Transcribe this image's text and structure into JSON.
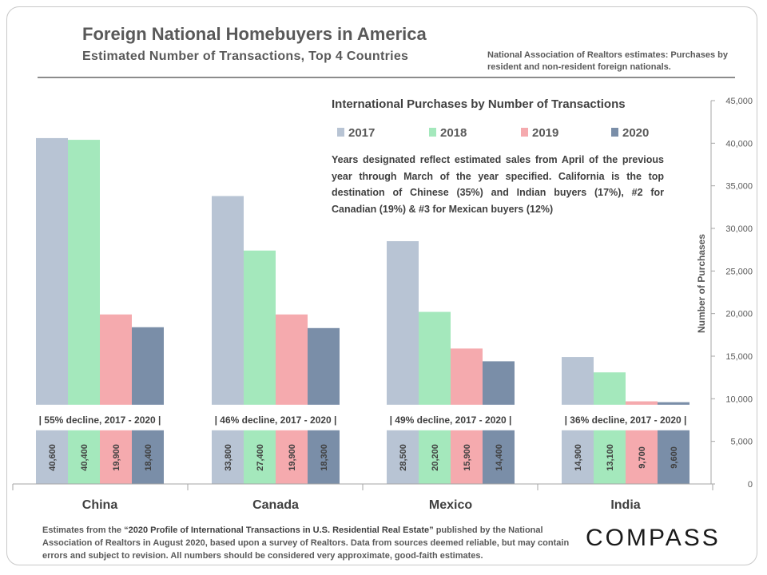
{
  "header": {
    "title": "Foreign National Homebuyers in America",
    "subtitle": "Estimated Number of Transactions, Top 4 Countries",
    "source_note": "National Association of Realtors estimates: Purchases by resident and non-resident foreign nationals."
  },
  "annotation": {
    "note": "Years designated reflect estimated sales from April of the previous year through March of the year specified. California is the top destination of Chinese (35%) and Indian buyers (17%), #2 for Canadian (19%) & #3 for Mexican buyers (12%)"
  },
  "footer": {
    "footnote_pre": "Estimates from the ",
    "footnote_em": "“2020 Profile of International Transactions in U.S. Residential Real Estate”",
    "footnote_post": " published by the National Association of Realtors in August 2020, based upon a survey of Realtors. Data from sources deemed reliable, but may contain errors and subject to revision.  All numbers should be considered very approximate, good-faith estimates.",
    "logo": "COMPASS"
  },
  "colors": {
    "2017": "#b8c4d4",
    "2018": "#a4e8bc",
    "2019": "#f5aaae",
    "2020": "#7a8ea8"
  },
  "chart_data": {
    "type": "bar",
    "title": "International Purchases by Number of Transactions",
    "ylabel": "Number of Purchases",
    "ylim": [
      0,
      45000
    ],
    "yticks": [
      0,
      5000,
      10000,
      15000,
      20000,
      25000,
      30000,
      35000,
      40000,
      45000
    ],
    "ytick_labels": [
      "0",
      "5,000",
      "10,000",
      "15,000",
      "20,000",
      "25,000",
      "30,000",
      "35,000",
      "40,000",
      "45,000"
    ],
    "y_axis_position": "right",
    "legend_position": "top",
    "categories": [
      "China",
      "Canada",
      "Mexico",
      "India"
    ],
    "series": [
      {
        "name": "2017",
        "values": [
          40600,
          33800,
          28500,
          14900
        ],
        "labels": [
          "40,600",
          "33,800",
          "28,500",
          "14,900"
        ]
      },
      {
        "name": "2018",
        "values": [
          40400,
          27400,
          20200,
          13100
        ],
        "labels": [
          "40,400",
          "27,400",
          "20,200",
          "13,100"
        ]
      },
      {
        "name": "2019",
        "values": [
          19900,
          19900,
          15900,
          9700
        ],
        "labels": [
          "19,900",
          "19,900",
          "15,900",
          "9,700"
        ]
      },
      {
        "name": "2020",
        "values": [
          18400,
          18300,
          14400,
          9600
        ],
        "labels": [
          "18,400",
          "18,300",
          "14,400",
          "9,600"
        ]
      }
    ],
    "annotations": [
      "| 55% decline, 2017 - 2020 |",
      "| 46% decline, 2017 - 2020 |",
      "| 49% decline, 2017 - 2020 |",
      "| 36% decline, 2017 - 2020 |"
    ]
  }
}
